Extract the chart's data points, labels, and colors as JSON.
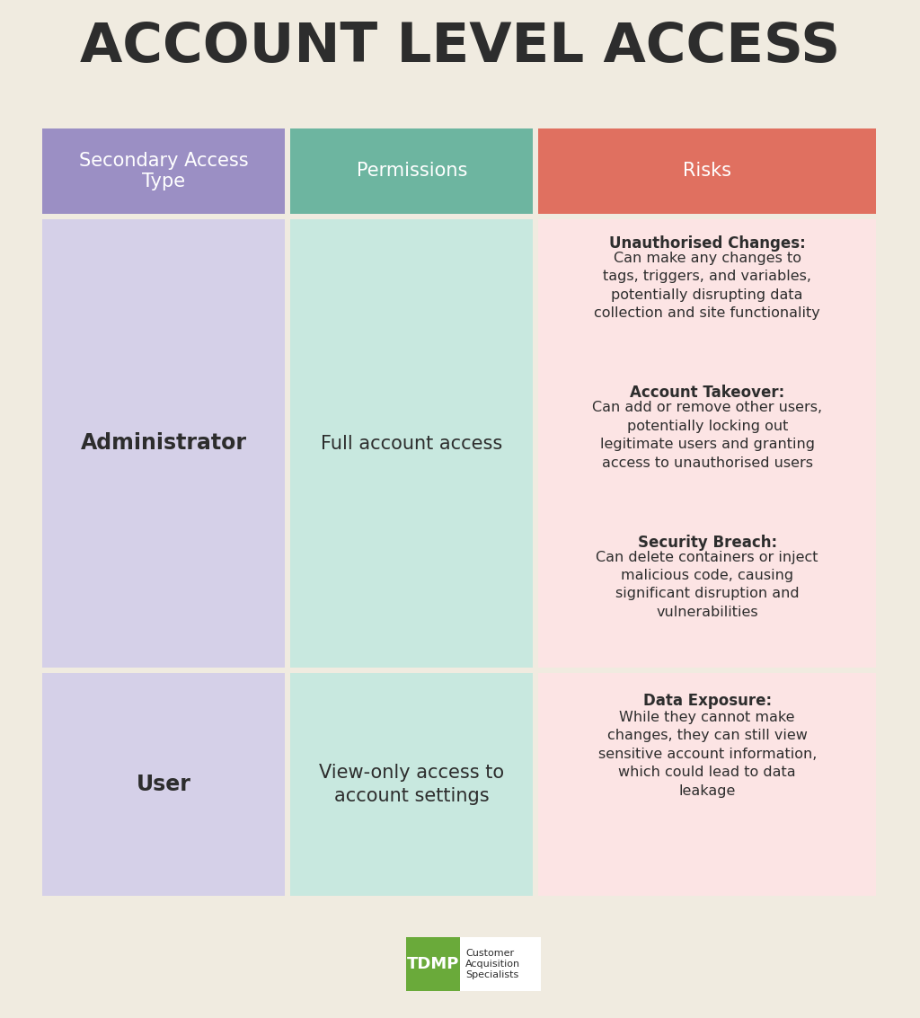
{
  "title": "ACCOUNT LEVEL ACCESS",
  "background_color": "#f0ebe0",
  "title_color": "#2d2d2d",
  "header_labels": [
    "Secondary Access\nType",
    "Permissions",
    "Risks"
  ],
  "header_colors": [
    "#9b8fc4",
    "#6db5a0",
    "#e07060"
  ],
  "header_text_color": "#ffffff",
  "row1_col1_text": "Administrator",
  "row1_col2_text": "Full account access",
  "row1_col1_bg": "#d5d0e8",
  "row1_col2_bg": "#c8e8df",
  "row1_col3_bg": "#fce4e4",
  "row2_col1_text": "User",
  "row2_col2_text": "View-only access to\naccount settings",
  "row2_col1_bg": "#d5d0e8",
  "row2_col2_bg": "#c8e8df",
  "row2_col3_bg": "#fce4e4",
  "admin_risks": [
    {
      "title": "Unauthorised Changes:",
      "body": "Can make any changes to\ntags, triggers, and variables,\npotentially disrupting data\ncollection and site functionality"
    },
    {
      "title": "Account Takeover:",
      "body": "Can add or remove other users,\npotentially locking out\nlegitimate users and granting\naccess to unauthorised users"
    },
    {
      "title": "Security Breach:",
      "body": "Can delete containers or inject\nmalicious code, causing\nsignificant disruption and\nvulnerabilities"
    }
  ],
  "user_risks": [
    {
      "title": "Data Exposure:",
      "body": "While they cannot make\nchanges, they can still view\nsensitive account information,\nwhich could lead to data\nleakage"
    }
  ],
  "logo_text": "TDMP",
  "logo_sub": "Customer\nAcquisition\nSpecialists",
  "logo_color": "#6aaa3a",
  "logo_text_color": "#ffffff",
  "logo_sub_color": "#2d2d2d"
}
